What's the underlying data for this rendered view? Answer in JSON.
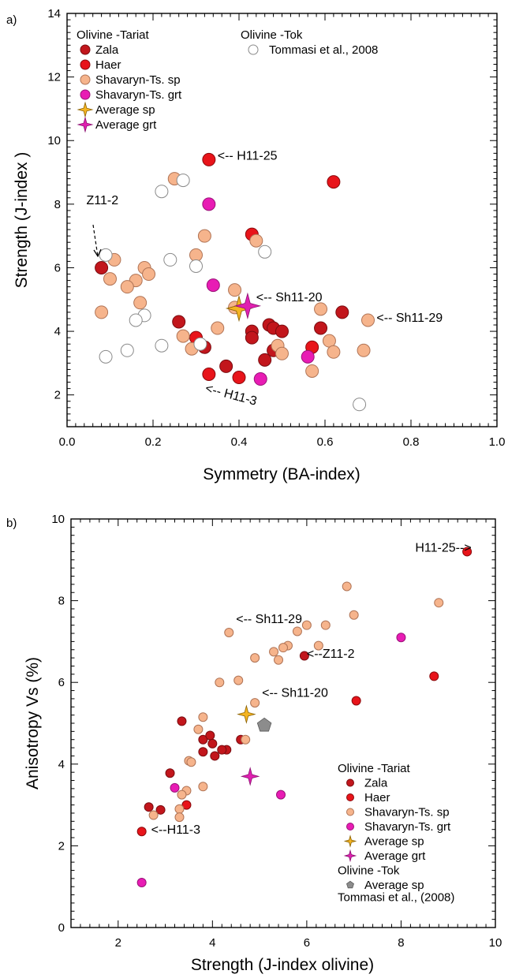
{
  "styles": {
    "Zala": {
      "fill": "#c2161c",
      "stroke": "#7a0c10",
      "shape": "circle"
    },
    "Haer": {
      "fill": "#e8141a",
      "stroke": "#8a0a0d",
      "shape": "circle"
    },
    "ShavSp": {
      "fill": "#f6b48c",
      "stroke": "#b07456",
      "shape": "circle"
    },
    "ShavGrt": {
      "fill": "#e81cb4",
      "stroke": "#9a1278",
      "shape": "circle"
    },
    "AvgSp": {
      "fill": "#f4b422",
      "stroke": "#8a6000",
      "shape": "star4"
    },
    "AvgGrt": {
      "fill": "#e020b0",
      "stroke": "#8a1070",
      "shape": "star4"
    },
    "Tok": {
      "fill": "#ffffff",
      "stroke": "#8a8a8a",
      "shape": "circle"
    },
    "TokAvg": {
      "fill": "#8c8c8c",
      "stroke": "#5a5a5a",
      "shape": "pentagon"
    }
  },
  "chart_data": [
    {
      "panel_label": "a)",
      "type": "scatter",
      "xlabel": "Symmetry (BA-index)",
      "ylabel": "Strength  (J-index )",
      "xlim": [
        0,
        1.0
      ],
      "ylim": [
        1,
        14
      ],
      "x_ticks": [
        0.0,
        0.2,
        0.4,
        0.6,
        0.8,
        1.0
      ],
      "x_tick_labels": [
        "0.0",
        "0.2",
        "0.4",
        "0.6",
        "0.8",
        "1.0"
      ],
      "y_ticks": [
        2,
        4,
        6,
        8,
        10,
        12,
        14
      ],
      "y_tick_labels": [
        "2",
        "4",
        "6",
        "8",
        "10",
        "12",
        "14"
      ],
      "grid": false,
      "legend_groups": [
        {
          "title": "Olivine -Tariat",
          "entries": [
            {
              "label": "Zala",
              "style": "Zala"
            },
            {
              "label": "Haer",
              "style": "Haer"
            },
            {
              "label": "Shavaryn-Ts. sp",
              "style": "ShavSp"
            },
            {
              "label": "Shavaryn-Ts. grt",
              "style": "ShavGrt"
            },
            {
              "label": "Average sp",
              "style": "AvgSp"
            },
            {
              "label": "Average grt",
              "style": "AvgGrt"
            }
          ]
        },
        {
          "title": "Olivine -Tok",
          "entries": [
            {
              "label": "Tommasi et al., 2008",
              "style": "Tok"
            }
          ]
        }
      ],
      "annotations": [
        {
          "text": "<-- H11-25",
          "x": 0.35,
          "y": 9.4
        },
        {
          "text": "<-- Sh11-20",
          "x": 0.44,
          "y": 4.95
        },
        {
          "text": "<-- Sh11-29",
          "x": 0.72,
          "y": 4.3
        },
        {
          "text": "<-- H11-3",
          "x": 0.32,
          "y": 2.1
        },
        {
          "text": "Z11-2",
          "x": 0.045,
          "y": 8.0
        }
      ],
      "series": [
        {
          "name": "Zala",
          "style": "Zala",
          "points": [
            [
              0.08,
              6.0
            ],
            [
              0.26,
              4.3
            ],
            [
              0.32,
              3.5
            ],
            [
              0.37,
              2.9
            ],
            [
              0.43,
              4.0
            ],
            [
              0.43,
              3.8
            ],
            [
              0.46,
              3.1
            ],
            [
              0.47,
              4.2
            ],
            [
              0.48,
              3.4
            ],
            [
              0.48,
              4.1
            ],
            [
              0.5,
              4.0
            ],
            [
              0.59,
              4.1
            ],
            [
              0.64,
              4.6
            ]
          ]
        },
        {
          "name": "Haer",
          "style": "Haer",
          "points": [
            [
              0.33,
              9.4
            ],
            [
              0.62,
              8.7
            ],
            [
              0.43,
              7.05
            ],
            [
              0.3,
              3.8
            ],
            [
              0.33,
              2.65
            ],
            [
              0.4,
              2.55
            ],
            [
              0.57,
              3.5
            ]
          ]
        },
        {
          "name": "Shavaryn-Ts. sp",
          "style": "ShavSp",
          "points": [
            [
              0.25,
              8.8
            ],
            [
              0.32,
              7.0
            ],
            [
              0.44,
              6.85
            ],
            [
              0.3,
              6.4
            ],
            [
              0.11,
              6.25
            ],
            [
              0.1,
              5.65
            ],
            [
              0.18,
              6.0
            ],
            [
              0.19,
              5.8
            ],
            [
              0.16,
              5.6
            ],
            [
              0.14,
              5.4
            ],
            [
              0.39,
              5.3
            ],
            [
              0.17,
              4.9
            ],
            [
              0.08,
              4.6
            ],
            [
              0.35,
              4.1
            ],
            [
              0.27,
              3.85
            ],
            [
              0.29,
              3.45
            ],
            [
              0.49,
              3.55
            ],
            [
              0.5,
              3.3
            ],
            [
              0.59,
              4.7
            ],
            [
              0.61,
              3.7
            ],
            [
              0.62,
              3.35
            ],
            [
              0.57,
              2.75
            ],
            [
              0.69,
              3.4
            ],
            [
              0.7,
              4.35
            ],
            [
              0.39,
              4.75
            ]
          ]
        },
        {
          "name": "Shavaryn-Ts. grt",
          "style": "ShavGrt",
          "points": [
            [
              0.33,
              8.0
            ],
            [
              0.34,
              5.45
            ],
            [
              0.45,
              2.5
            ],
            [
              0.56,
              3.2
            ]
          ]
        },
        {
          "name": "Average sp",
          "style": "AvgSp",
          "points": [
            [
              0.4,
              4.72
            ]
          ]
        },
        {
          "name": "Average grt",
          "style": "AvgGrt",
          "points": [
            [
              0.42,
              4.8
            ]
          ]
        },
        {
          "name": "Tommasi et al., 2008",
          "style": "Tok",
          "points": [
            [
              0.22,
              8.4
            ],
            [
              0.27,
              8.75
            ],
            [
              0.09,
              6.4
            ],
            [
              0.24,
              6.25
            ],
            [
              0.3,
              6.05
            ],
            [
              0.46,
              6.5
            ],
            [
              0.18,
              4.5
            ],
            [
              0.16,
              4.35
            ],
            [
              0.14,
              3.4
            ],
            [
              0.09,
              3.2
            ],
            [
              0.22,
              3.55
            ],
            [
              0.31,
              3.6
            ],
            [
              0.68,
              1.7
            ]
          ]
        }
      ]
    },
    {
      "panel_label": "b)",
      "type": "scatter",
      "xlabel": "Strength (J-index olivine)",
      "ylabel": "Anisotropy Vs (%)",
      "xlim": [
        1,
        10
      ],
      "ylim": [
        0,
        10
      ],
      "x_ticks": [
        2,
        4,
        6,
        8,
        10
      ],
      "x_tick_labels": [
        "2",
        "4",
        "6",
        "8",
        "10"
      ],
      "y_ticks": [
        0,
        2,
        4,
        6,
        8,
        10
      ],
      "y_tick_labels": [
        "0",
        "2",
        "4",
        "6",
        "8",
        "10"
      ],
      "grid": false,
      "legend_groups": [
        {
          "title": "Olivine -Tariat",
          "entries": [
            {
              "label": "Zala",
              "style": "Zala"
            },
            {
              "label": "Haer",
              "style": "Haer"
            },
            {
              "label": "Shavaryn-Ts. sp",
              "style": "ShavSp"
            },
            {
              "label": "Shavaryn-Ts. grt",
              "style": "ShavGrt"
            },
            {
              "label": "Average sp",
              "style": "AvgSp"
            },
            {
              "label": "Average grt",
              "style": "AvgGrt"
            }
          ]
        },
        {
          "title": "Olivine -Tok",
          "entries": [
            {
              "label": "Average sp",
              "style": "TokAvg"
            }
          ]
        }
      ],
      "legend_footer": "Tommasi et al., (2008)",
      "annotations": [
        {
          "text": "H11-25-->",
          "x": 8.3,
          "y": 9.2
        },
        {
          "text": "<-- Sh11-29",
          "x": 4.5,
          "y": 7.45
        },
        {
          "text": "<--Z11-2",
          "x": 6.0,
          "y": 6.6
        },
        {
          "text": "<-- Sh11-20",
          "x": 5.05,
          "y": 5.65
        },
        {
          "text": "<--H11-3",
          "x": 2.7,
          "y": 2.3
        }
      ],
      "series": [
        {
          "name": "Zala",
          "style": "Zala",
          "points": [
            [
              5.95,
              6.65
            ],
            [
              3.35,
              5.05
            ],
            [
              3.8,
              4.6
            ],
            [
              3.95,
              4.7
            ],
            [
              4.0,
              4.5
            ],
            [
              4.05,
              4.2
            ],
            [
              4.3,
              4.35
            ],
            [
              4.2,
              4.35
            ],
            [
              3.8,
              4.3
            ],
            [
              4.6,
              4.6
            ],
            [
              3.1,
              3.78
            ],
            [
              2.9,
              2.88
            ],
            [
              2.65,
              2.95
            ]
          ]
        },
        {
          "name": "Haer",
          "style": "Haer",
          "points": [
            [
              9.4,
              9.2
            ],
            [
              8.7,
              6.15
            ],
            [
              7.05,
              5.55
            ],
            [
              3.45,
              3.0
            ],
            [
              2.5,
              2.35
            ]
          ]
        },
        {
          "name": "Shavaryn-Ts. sp",
          "style": "ShavSp",
          "points": [
            [
              6.85,
              8.35
            ],
            [
              8.8,
              7.95
            ],
            [
              7.0,
              7.65
            ],
            [
              6.0,
              7.4
            ],
            [
              6.4,
              7.4
            ],
            [
              4.35,
              7.22
            ],
            [
              5.8,
              7.25
            ],
            [
              5.6,
              6.9
            ],
            [
              5.3,
              6.75
            ],
            [
              6.25,
              6.9
            ],
            [
              5.5,
              6.85
            ],
            [
              5.4,
              6.55
            ],
            [
              4.9,
              6.6
            ],
            [
              4.15,
              6.0
            ],
            [
              4.55,
              6.05
            ],
            [
              4.9,
              5.5
            ],
            [
              3.8,
              5.15
            ],
            [
              3.7,
              4.85
            ],
            [
              3.5,
              4.08
            ],
            [
              3.55,
              4.05
            ],
            [
              3.8,
              3.45
            ],
            [
              3.45,
              3.35
            ],
            [
              3.35,
              3.25
            ],
            [
              3.3,
              2.9
            ],
            [
              3.3,
              2.7
            ],
            [
              2.75,
              2.75
            ],
            [
              4.7,
              4.6
            ]
          ]
        },
        {
          "name": "Shavaryn-Ts. grt",
          "style": "ShavGrt",
          "points": [
            [
              8.0,
              7.1
            ],
            [
              3.2,
              3.42
            ],
            [
              5.45,
              3.25
            ],
            [
              2.5,
              1.1
            ]
          ]
        },
        {
          "name": "Average sp",
          "style": "AvgSp",
          "points": [
            [
              4.72,
              5.22
            ]
          ]
        },
        {
          "name": "Average grt",
          "style": "AvgGrt",
          "points": [
            [
              4.8,
              3.7
            ]
          ]
        },
        {
          "name": "Average sp",
          "style": "TokAvg",
          "points": [
            [
              5.1,
              4.95
            ]
          ]
        }
      ]
    }
  ]
}
